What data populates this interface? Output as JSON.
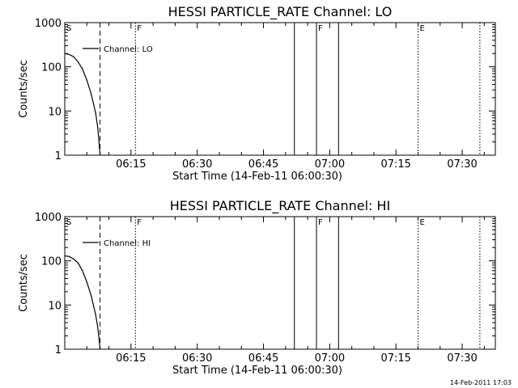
{
  "footer": {
    "stamp": "14-Feb-2011 17:03"
  },
  "colors": {
    "background": "#ffffff",
    "foreground": "#000000"
  },
  "chart_data": [
    {
      "type": "line",
      "title": "HESSI PARTICLE_RATE Channel: LO",
      "xlabel": "Start Time (14-Feb-11 06:00:30)",
      "ylabel": "Counts/sec",
      "xlim_minutes_from_start": [
        0,
        97.5
      ],
      "ylim": [
        1,
        1000
      ],
      "yscale": "log",
      "yticks": [
        "1",
        "10",
        "100",
        "1000"
      ],
      "xticks": [
        {
          "label": "06:15",
          "t": 15
        },
        {
          "label": "06:30",
          "t": 30
        },
        {
          "label": "06:45",
          "t": 45
        },
        {
          "label": "07:00",
          "t": 60
        },
        {
          "label": "07:15",
          "t": 75
        },
        {
          "label": "07:30",
          "t": 90
        }
      ],
      "legend": {
        "label": "Channel: LO",
        "placement": "top-left"
      },
      "series": [
        {
          "name": "Channel: LO",
          "points": [
            [
              0,
              200
            ],
            [
              1,
              190
            ],
            [
              2,
              170
            ],
            [
              3,
              130
            ],
            [
              4,
              90
            ],
            [
              5,
              50
            ],
            [
              6,
              24
            ],
            [
              7,
              9
            ],
            [
              7.5,
              4
            ],
            [
              8,
              1
            ]
          ]
        }
      ],
      "vertical_markers": [
        {
          "t": 8,
          "style": "dashed",
          "label": ""
        },
        {
          "t": 16,
          "style": "dotted",
          "label": "F"
        },
        {
          "t": 52,
          "style": "solid",
          "label": ""
        },
        {
          "t": 57,
          "style": "solid",
          "label": "F"
        },
        {
          "t": 62,
          "style": "solid",
          "label": ""
        },
        {
          "t": 80,
          "style": "dotted",
          "label": "E"
        },
        {
          "t": 94,
          "style": "dotted",
          "label": ""
        }
      ],
      "corner_label": "S"
    },
    {
      "type": "line",
      "title": "HESSI PARTICLE_RATE Channel: HI",
      "xlabel": "Start Time (14-Feb-11 06:00:30)",
      "ylabel": "Counts/sec",
      "xlim_minutes_from_start": [
        0,
        97.5
      ],
      "ylim": [
        1,
        1000
      ],
      "yscale": "log",
      "yticks": [
        "1",
        "10",
        "100",
        "1000"
      ],
      "xticks": [
        {
          "label": "06:15",
          "t": 15
        },
        {
          "label": "06:30",
          "t": 30
        },
        {
          "label": "06:45",
          "t": 45
        },
        {
          "label": "07:00",
          "t": 60
        },
        {
          "label": "07:15",
          "t": 75
        },
        {
          "label": "07:30",
          "t": 90
        }
      ],
      "legend": {
        "label": "Channel: HI",
        "placement": "top-left"
      },
      "series": [
        {
          "name": "Channel: HI",
          "points": [
            [
              0,
              130
            ],
            [
              1,
              125
            ],
            [
              2,
              110
            ],
            [
              3,
              90
            ],
            [
              4,
              60
            ],
            [
              5,
              33
            ],
            [
              6,
              16
            ],
            [
              7,
              6
            ],
            [
              7.5,
              3
            ],
            [
              8,
              1
            ]
          ]
        }
      ],
      "vertical_markers": [
        {
          "t": 8,
          "style": "dashed",
          "label": ""
        },
        {
          "t": 16,
          "style": "dotted",
          "label": "F"
        },
        {
          "t": 52,
          "style": "solid",
          "label": ""
        },
        {
          "t": 57,
          "style": "solid",
          "label": "F"
        },
        {
          "t": 62,
          "style": "solid",
          "label": ""
        },
        {
          "t": 80,
          "style": "dotted",
          "label": "E"
        },
        {
          "t": 94,
          "style": "dotted",
          "label": ""
        }
      ],
      "corner_label": "S"
    }
  ]
}
